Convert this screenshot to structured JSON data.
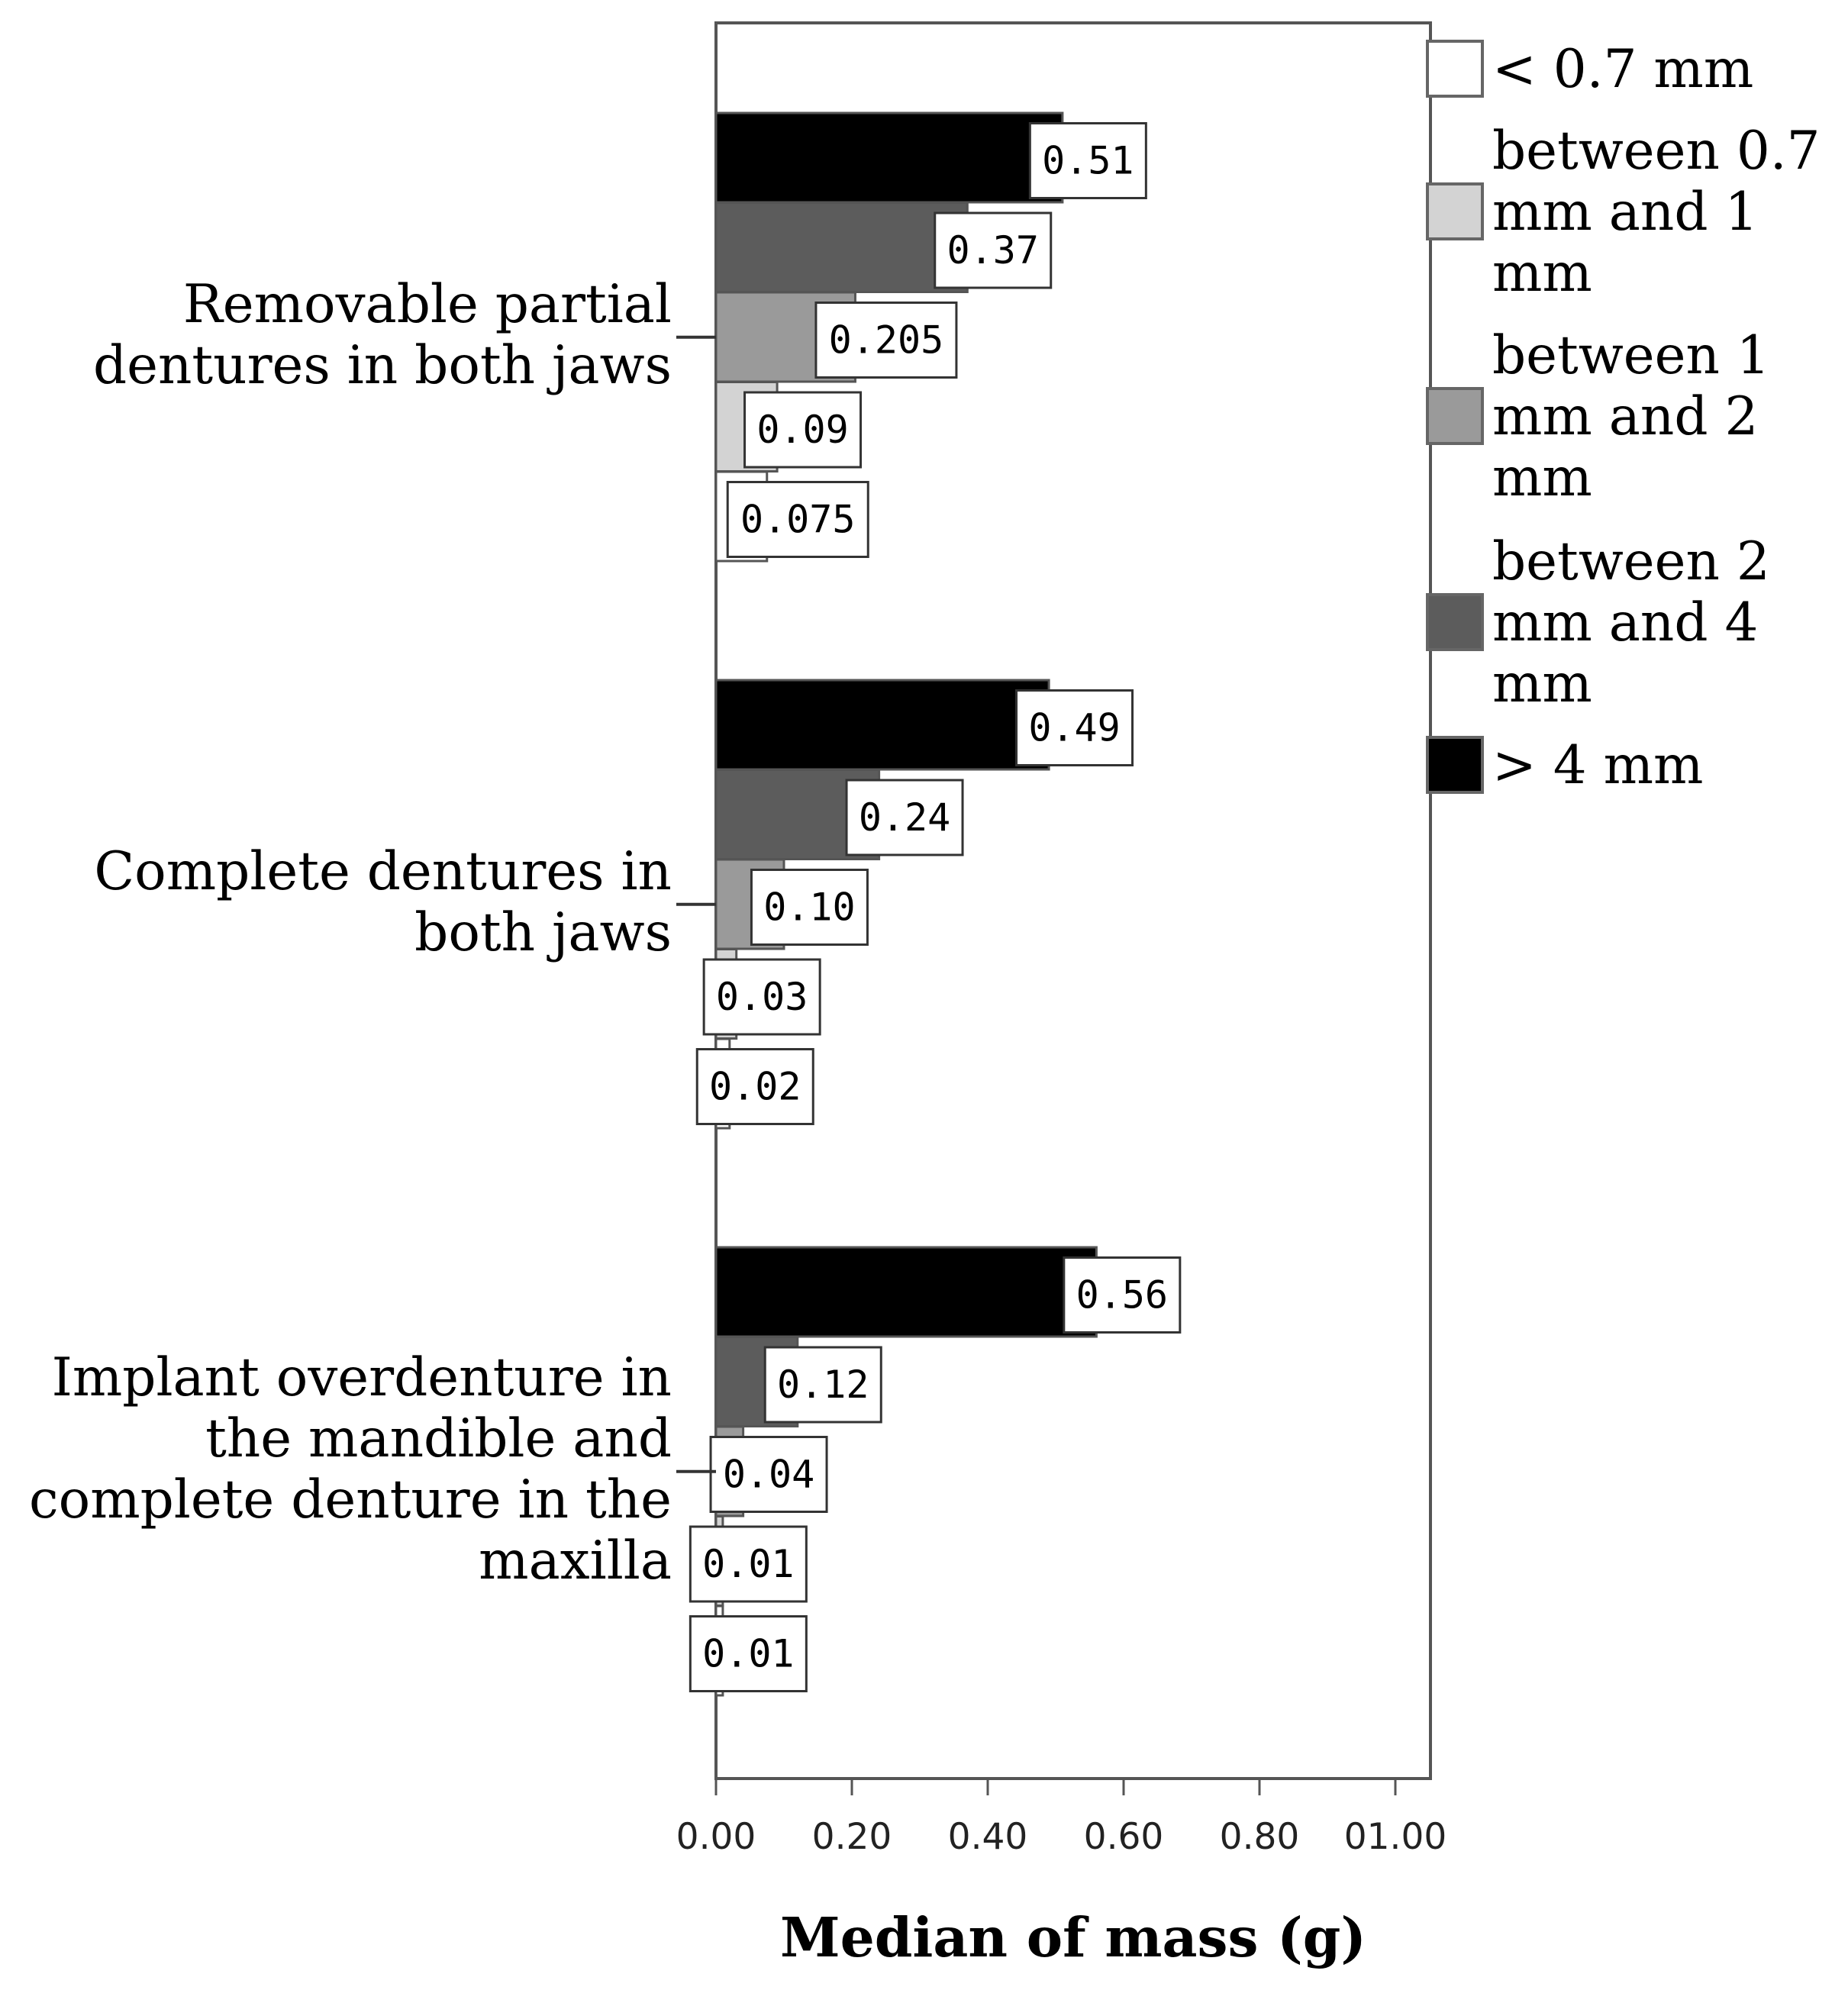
{
  "chart_data": {
    "type": "bar",
    "orientation": "horizontal",
    "categories": [
      "Removable partial dentures in both jaws",
      "Complete dentures in both jaws",
      "Implant overdenture in the mandible and complete denture in the maxilla"
    ],
    "category_lines": [
      [
        "Removable partial",
        "dentures in both jaws"
      ],
      [
        "Complete dentures in",
        "both jaws"
      ],
      [
        "Implant overdenture in",
        "the mandible and",
        "complete denture in the",
        "maxilla"
      ]
    ],
    "series": [
      {
        "name": "< 0.7 mm",
        "legend_lines": [
          "< 0.7 mm"
        ],
        "color": "#ffffff",
        "values": [
          0.075,
          0.02,
          0.01
        ],
        "labels": [
          "0.075",
          "0.02",
          "0.01"
        ]
      },
      {
        "name": "between 0.7 mm and 1 mm",
        "legend_lines": [
          "between 0.7",
          "mm and 1",
          "mm"
        ],
        "color": "#d3d3d3",
        "values": [
          0.09,
          0.03,
          0.01
        ],
        "labels": [
          "0.09",
          "0.03",
          "0.01"
        ]
      },
      {
        "name": "between 1 mm and 2 mm",
        "legend_lines": [
          "between 1",
          "mm and 2",
          "mm"
        ],
        "color": "#9a9a9a",
        "values": [
          0.205,
          0.1,
          0.04
        ],
        "labels": [
          "0.205",
          "0.10",
          "0.04"
        ]
      },
      {
        "name": "between 2 mm and 4 mm",
        "legend_lines": [
          "between 2",
          "mm and 4",
          "mm"
        ],
        "color": "#5c5c5c",
        "values": [
          0.37,
          0.24,
          0.12
        ],
        "labels": [
          "0.37",
          "0.24",
          "0.12"
        ]
      },
      {
        "name": "> 4 mm",
        "legend_lines": [
          "> 4 mm"
        ],
        "color": "#000000",
        "values": [
          0.51,
          0.49,
          0.56
        ],
        "labels": [
          "0.51",
          "0.49",
          "0.56"
        ]
      }
    ],
    "xlabel": "Median of mass (g)",
    "ylabel": "",
    "xlim": [
      0,
      1.05
    ],
    "xticks": [
      0,
      0.2,
      0.4,
      0.6,
      0.8,
      1.0
    ],
    "xtick_labels": [
      "0.00",
      "0.20",
      "0.40",
      "0.60",
      "0.80",
      "01.00"
    ],
    "grid": false,
    "legend": "right"
  }
}
